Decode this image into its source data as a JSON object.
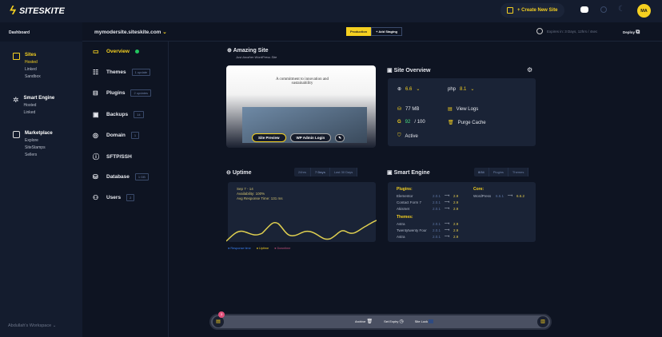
{
  "brand": {
    "name": "SITESKITE"
  },
  "header": {
    "create_label": "+ Create New Site",
    "avatar": "MA",
    "icons": [
      "discord-icon",
      "search-icon",
      "moon-icon"
    ]
  },
  "sidebar": {
    "dashboard": "Dashboard",
    "groups": [
      {
        "title": "Sites",
        "icon": "sites-icon",
        "items": [
          "Hosted",
          "Linked",
          "Sandbox"
        ],
        "active": "Hosted"
      },
      {
        "title": "Smart Engine",
        "icon": "smart-engine-icon",
        "items": [
          "Hosted",
          "Linked"
        ]
      },
      {
        "title": "Marketplace",
        "icon": "marketplace-icon",
        "items": [
          "Explore",
          "SiteStamps",
          "Sellers"
        ]
      }
    ],
    "workspace": "Abdullah's Workspace"
  },
  "sitebar": {
    "domain": "mymodersite.siteskite.com",
    "production": "Production",
    "add_staging": "+ Add Staging",
    "expires": "Expires in: 3 Days, 12hrs / 4sec",
    "deploy": "Deploy"
  },
  "subnav": [
    {
      "label": "Overview",
      "badge": "",
      "active": true,
      "status_color": "#22c55e"
    },
    {
      "label": "Themes",
      "badge": "1 update"
    },
    {
      "label": "Plugins",
      "badge": "2 updates"
    },
    {
      "label": "Backups",
      "badge": "14"
    },
    {
      "label": "Domain",
      "badge": "1"
    },
    {
      "label": "SFTP/SSH",
      "badge": ""
    },
    {
      "label": "Database",
      "badge": "1 DB"
    },
    {
      "label": "Users",
      "badge": "2"
    }
  ],
  "site": {
    "title": "Amazing Site",
    "tagline": "Just Another WordPress Site",
    "preview_heading": "A commitment to innovation and sustainability",
    "preview_btn": "Site Preview",
    "admin_btn": "WP Admin Login"
  },
  "overview": {
    "title": "Site Overview",
    "wp_version": "6.6",
    "php_label": "php",
    "php_version": "8.1",
    "storage": "77 MB",
    "score": "92",
    "score_max": "/ 100",
    "status": "Active",
    "view_logs": "View Logs",
    "purge_cache": "Purge Cache"
  },
  "uptime": {
    "title": "Uptime",
    "tabs": [
      "24hrs",
      "7 Days",
      "Last 30 Days"
    ],
    "active_tab": "7 Days",
    "range": "Sep 7 - 14",
    "availability": "Availability: 100%",
    "avg_response": "Avg Response Time: 131 ms",
    "legend": [
      {
        "label": "Response time",
        "color": "#3b82f6"
      },
      {
        "label": "Uptime",
        "color": "#f5d020"
      },
      {
        "label": "Downtime",
        "color": "#c0507a"
      }
    ]
  },
  "smart_engine": {
    "title": "Smart Engine",
    "tabs": [
      "8/34",
      "Plugins",
      "Themes"
    ],
    "plugins_title": "Plugins:",
    "plugins": [
      {
        "name": "Elementor",
        "from": "2.0.1",
        "to": "2.9"
      },
      {
        "name": "Contact Form 7",
        "from": "2.0.1",
        "to": "2.9"
      },
      {
        "name": "Akismet",
        "from": "2.0.1",
        "to": "2.9"
      }
    ],
    "themes_title": "Themes:",
    "themes": [
      {
        "name": "Astra",
        "from": "2.0.1",
        "to": "2.9"
      },
      {
        "name": "Twentytwenty Four",
        "from": "2.0.1",
        "to": "2.9"
      },
      {
        "name": "Astra",
        "from": "2.0.1",
        "to": "2.9"
      }
    ],
    "core_title": "Core:",
    "core": [
      {
        "name": "WordPress",
        "from": "6.6.1",
        "to": "6.6.2"
      }
    ]
  },
  "bottombar": {
    "count": "3",
    "archive": "Archive",
    "set_expiry": "Set Expiry",
    "site_lock": "Site Lock"
  }
}
